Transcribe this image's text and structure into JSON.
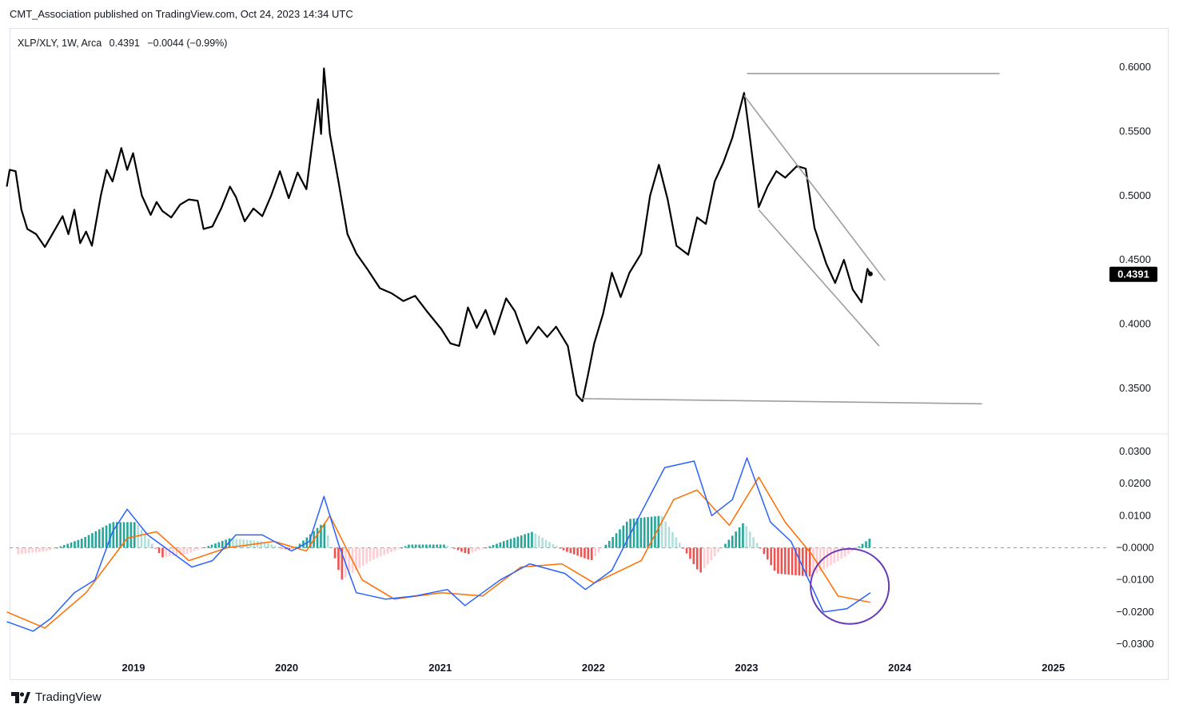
{
  "header": {
    "text": "CMT_Association published on TradingView.com, Oct 24, 2023 14:34 UTC"
  },
  "legend": {
    "symbol": "XLP/XLY, 1W, Arca",
    "price": "0.4391",
    "change": "−0.0044 (−0.99%)"
  },
  "footer": {
    "brand": "TradingView"
  },
  "colors": {
    "price": "#000000",
    "macd": "#2962ff",
    "signal": "#ff6d00",
    "hist_pos_strong": "#26a69a",
    "hist_pos_weak": "#b2dfdb",
    "hist_neg_strong": "#ef5350",
    "hist_neg_weak": "#ffcdd2",
    "trendline": "#9e9e9e",
    "circle": "#673ab7"
  },
  "chart_data": [
    {
      "type": "line",
      "title": "XLP/XLY, 1W, Arca",
      "series": [
        {
          "name": "XLP/XLY",
          "points": [
            [
              "2018-03-05",
              0.507
            ],
            [
              "2018-03-12",
              0.52
            ],
            [
              "2018-03-26",
              0.519
            ],
            [
              "2018-04-09",
              0.489
            ],
            [
              "2018-04-23",
              0.474
            ],
            [
              "2018-05-14",
              0.47
            ],
            [
              "2018-06-04",
              0.46
            ],
            [
              "2018-06-25",
              0.472
            ],
            [
              "2018-07-16",
              0.484
            ],
            [
              "2018-07-30",
              0.47
            ],
            [
              "2018-08-13",
              0.489
            ],
            [
              "2018-08-27",
              0.463
            ],
            [
              "2018-09-10",
              0.472
            ],
            [
              "2018-09-24",
              0.461
            ],
            [
              "2018-10-15",
              0.5
            ],
            [
              "2018-10-29",
              0.52
            ],
            [
              "2018-11-12",
              0.511
            ],
            [
              "2018-12-03",
              0.537
            ],
            [
              "2018-12-17",
              0.52
            ],
            [
              "2018-12-31",
              0.533
            ],
            [
              "2019-01-21",
              0.5
            ],
            [
              "2019-02-11",
              0.485
            ],
            [
              "2019-02-25",
              0.495
            ],
            [
              "2019-03-11",
              0.488
            ],
            [
              "2019-04-01",
              0.483
            ],
            [
              "2019-04-22",
              0.493
            ],
            [
              "2019-05-13",
              0.497
            ],
            [
              "2019-06-03",
              0.496
            ],
            [
              "2019-06-17",
              0.474
            ],
            [
              "2019-07-08",
              0.476
            ],
            [
              "2019-07-29",
              0.49
            ],
            [
              "2019-08-19",
              0.507
            ],
            [
              "2019-09-02",
              0.499
            ],
            [
              "2019-09-23",
              0.48
            ],
            [
              "2019-10-14",
              0.49
            ],
            [
              "2019-11-04",
              0.484
            ],
            [
              "2019-11-25",
              0.5
            ],
            [
              "2019-12-16",
              0.519
            ],
            [
              "2020-01-06",
              0.498
            ],
            [
              "2020-01-27",
              0.518
            ],
            [
              "2020-02-17",
              0.505
            ],
            [
              "2020-03-02",
              0.54
            ],
            [
              "2020-03-16",
              0.575
            ],
            [
              "2020-03-23",
              0.548
            ],
            [
              "2020-03-30",
              0.599
            ],
            [
              "2020-04-13",
              0.548
            ],
            [
              "2020-05-04",
              0.51
            ],
            [
              "2020-05-25",
              0.47
            ],
            [
              "2020-06-15",
              0.455
            ],
            [
              "2020-07-13",
              0.442
            ],
            [
              "2020-08-10",
              0.428
            ],
            [
              "2020-09-07",
              0.424
            ],
            [
              "2020-10-05",
              0.418
            ],
            [
              "2020-11-02",
              0.422
            ],
            [
              "2020-11-30",
              0.41
            ],
            [
              "2021-01-04",
              0.396
            ],
            [
              "2021-01-25",
              0.385
            ],
            [
              "2021-02-15",
              0.383
            ],
            [
              "2021-03-08",
              0.413
            ],
            [
              "2021-03-29",
              0.397
            ],
            [
              "2021-04-19",
              0.411
            ],
            [
              "2021-05-10",
              0.392
            ],
            [
              "2021-06-07",
              0.42
            ],
            [
              "2021-06-28",
              0.41
            ],
            [
              "2021-07-26",
              0.385
            ],
            [
              "2021-08-23",
              0.398
            ],
            [
              "2021-09-13",
              0.39
            ],
            [
              "2021-10-04",
              0.398
            ],
            [
              "2021-11-01",
              0.383
            ],
            [
              "2021-11-22",
              0.345
            ],
            [
              "2021-12-06",
              0.34
            ],
            [
              "2021-12-20",
              0.362
            ],
            [
              "2022-01-03",
              0.385
            ],
            [
              "2022-01-24",
              0.408
            ],
            [
              "2022-02-14",
              0.44
            ],
            [
              "2022-03-07",
              0.421
            ],
            [
              "2022-03-28",
              0.44
            ],
            [
              "2022-04-25",
              0.455
            ],
            [
              "2022-05-16",
              0.5
            ],
            [
              "2022-06-06",
              0.524
            ],
            [
              "2022-06-27",
              0.497
            ],
            [
              "2022-07-18",
              0.461
            ],
            [
              "2022-08-15",
              0.454
            ],
            [
              "2022-09-05",
              0.483
            ],
            [
              "2022-09-26",
              0.478
            ],
            [
              "2022-10-17",
              0.511
            ],
            [
              "2022-11-07",
              0.526
            ],
            [
              "2022-11-28",
              0.545
            ],
            [
              "2022-12-26",
              0.58
            ],
            [
              "2023-01-09",
              0.545
            ],
            [
              "2023-01-30",
              0.491
            ],
            [
              "2023-02-20",
              0.507
            ],
            [
              "2023-03-13",
              0.519
            ],
            [
              "2023-04-03",
              0.514
            ],
            [
              "2023-05-01",
              0.523
            ],
            [
              "2023-05-22",
              0.521
            ],
            [
              "2023-06-12",
              0.475
            ],
            [
              "2023-07-10",
              0.447
            ],
            [
              "2023-07-31",
              0.432
            ],
            [
              "2023-08-21",
              0.45
            ],
            [
              "2023-09-11",
              0.427
            ],
            [
              "2023-10-02",
              0.417
            ],
            [
              "2023-10-16",
              0.443
            ],
            [
              "2023-10-23",
              0.4391
            ]
          ]
        }
      ],
      "trendlines": [
        {
          "from": [
            "2022-12-26",
            0.578
          ],
          "to": [
            "2023-11-27",
            0.434
          ]
        },
        {
          "from": [
            "2023-01-30",
            0.489
          ],
          "to": [
            "2023-11-13",
            0.383
          ]
        },
        {
          "from": [
            "2023-01-02",
            0.595
          ],
          "to": [
            "2024-08-26",
            0.595
          ]
        },
        {
          "from": [
            "2021-12-06",
            0.342
          ],
          "to": [
            "2024-07-15",
            0.338
          ]
        }
      ],
      "last_value_label": "0.4391",
      "ylim": [
        0.33,
        0.61
      ],
      "y_ticks": [
        "0.6000",
        "0.5500",
        "0.5000",
        "0.4500",
        "0.4000",
        "0.3500"
      ],
      "legend": "top-left"
    },
    {
      "type": "bar",
      "title": "",
      "series": [
        {
          "name": "",
          "kind": "line",
          "color": "macd",
          "points": [
            [
              "2018-03-05",
              -0.023
            ],
            [
              "2018-05-07",
              -0.026
            ],
            [
              "2018-06-18",
              -0.022
            ],
            [
              "2018-08-13",
              -0.014
            ],
            [
              "2018-10-01",
              -0.01
            ],
            [
              "2018-11-12",
              0.005
            ],
            [
              "2018-12-17",
              0.012
            ],
            [
              "2019-02-04",
              0.004
            ],
            [
              "2019-04-08",
              -0.002
            ],
            [
              "2019-05-20",
              -0.006
            ],
            [
              "2019-07-08",
              -0.004
            ],
            [
              "2019-09-02",
              0.004
            ],
            [
              "2019-11-04",
              0.004
            ],
            [
              "2020-01-13",
              -0.001
            ],
            [
              "2020-02-24",
              0.002
            ],
            [
              "2020-03-30",
              0.016
            ],
            [
              "2020-05-04",
              0.001
            ],
            [
              "2020-06-15",
              -0.014
            ],
            [
              "2020-08-24",
              -0.016
            ],
            [
              "2020-11-02",
              -0.015
            ],
            [
              "2021-01-18",
              -0.013
            ],
            [
              "2021-03-01",
              -0.018
            ],
            [
              "2021-05-24",
              -0.01
            ],
            [
              "2021-08-02",
              -0.005
            ],
            [
              "2021-10-25",
              -0.008
            ],
            [
              "2021-12-13",
              -0.013
            ],
            [
              "2022-02-14",
              -0.007
            ],
            [
              "2022-04-25",
              0.011
            ],
            [
              "2022-06-20",
              0.025
            ],
            [
              "2022-08-29",
              0.027
            ],
            [
              "2022-10-10",
              0.01
            ],
            [
              "2022-11-28",
              0.015
            ],
            [
              "2023-01-02",
              0.028
            ],
            [
              "2023-02-27",
              0.008
            ],
            [
              "2023-04-17",
              0.002
            ],
            [
              "2023-07-03",
              -0.02
            ],
            [
              "2023-08-28",
              -0.019
            ],
            [
              "2023-10-23",
              -0.014
            ]
          ]
        },
        {
          "name": "",
          "kind": "line",
          "color": "signal",
          "points": [
            [
              "2018-03-05",
              -0.02
            ],
            [
              "2018-06-04",
              -0.025
            ],
            [
              "2018-09-10",
              -0.014
            ],
            [
              "2018-12-17",
              0.003
            ],
            [
              "2019-02-25",
              0.005
            ],
            [
              "2019-05-13",
              -0.004
            ],
            [
              "2019-08-12",
              0.0
            ],
            [
              "2019-12-02",
              0.002
            ],
            [
              "2020-02-17",
              -0.001
            ],
            [
              "2020-04-13",
              0.01
            ],
            [
              "2020-06-29",
              -0.01
            ],
            [
              "2020-09-14",
              -0.016
            ],
            [
              "2021-01-04",
              -0.014
            ],
            [
              "2021-04-12",
              -0.015
            ],
            [
              "2021-07-12",
              -0.006
            ],
            [
              "2021-10-18",
              -0.005
            ],
            [
              "2022-01-03",
              -0.011
            ],
            [
              "2022-04-25",
              -0.004
            ],
            [
              "2022-07-11",
              0.015
            ],
            [
              "2022-09-05",
              0.018
            ],
            [
              "2022-11-21",
              0.007
            ],
            [
              "2023-01-30",
              0.022
            ],
            [
              "2023-04-03",
              0.008
            ],
            [
              "2023-06-05",
              -0.002
            ],
            [
              "2023-08-07",
              -0.015
            ],
            [
              "2023-10-23",
              -0.017
            ]
          ]
        },
        {
          "name": "",
          "kind": "histogram",
          "points": [
            [
              "2018-04-02",
              -0.002
            ],
            [
              "2018-06-11",
              -0.001
            ],
            [
              "2018-09-03",
              0.003
            ],
            [
              "2018-11-12",
              0.008
            ],
            [
              "2019-01-07",
              0.008
            ],
            [
              "2019-03-11",
              -0.003
            ],
            [
              "2019-05-06",
              -0.002
            ],
            [
              "2019-08-19",
              0.003
            ],
            [
              "2019-11-04",
              0.002
            ],
            [
              "2020-01-13",
              -0.001
            ],
            [
              "2020-03-30",
              0.008
            ],
            [
              "2020-05-11",
              -0.01
            ],
            [
              "2020-07-20",
              -0.004
            ],
            [
              "2020-10-19",
              0.001
            ],
            [
              "2021-01-11",
              0.001
            ],
            [
              "2021-03-08",
              -0.002
            ],
            [
              "2021-05-31",
              0.002
            ],
            [
              "2021-08-09",
              0.005
            ],
            [
              "2021-10-25",
              -0.001
            ],
            [
              "2021-12-27",
              -0.004
            ],
            [
              "2022-03-28",
              0.009
            ],
            [
              "2022-06-13",
              0.01
            ],
            [
              "2022-09-12",
              -0.008
            ],
            [
              "2022-12-26",
              0.008
            ],
            [
              "2023-03-13",
              -0.008
            ],
            [
              "2023-06-05",
              -0.009
            ],
            [
              "2023-08-21",
              -0.003
            ],
            [
              "2023-10-23",
              0.003
            ]
          ]
        }
      ],
      "ylim": [
        -0.032,
        0.031
      ],
      "y_ticks": [
        "0.0300",
        "0.0200",
        "0.0100",
        "−0.0000",
        "−0.0100",
        "−0.0200",
        "−0.0300"
      ],
      "x_ticks": [
        "2019",
        "2020",
        "2021",
        "2022",
        "2023",
        "2024",
        "2025"
      ],
      "annotation": "circle-highlight"
    }
  ]
}
